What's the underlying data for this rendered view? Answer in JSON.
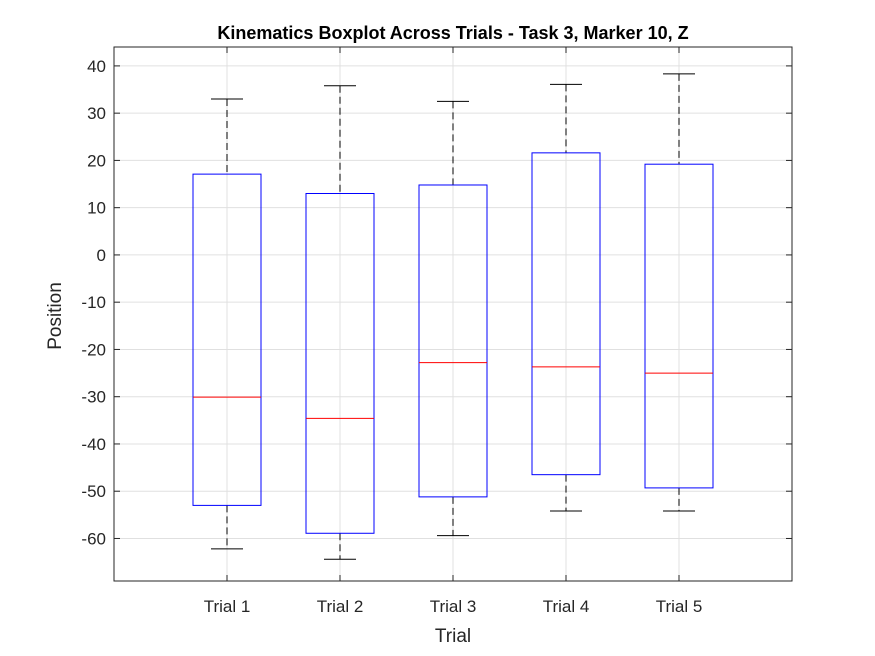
{
  "chart_data": {
    "type": "boxplot",
    "title": "Kinematics Boxplot Across Trials - Task 3, Marker 10, Z",
    "xlabel": "Trial",
    "ylabel": "Position",
    "ylim": [
      -69,
      44
    ],
    "yticks": [
      40,
      30,
      20,
      10,
      0,
      -10,
      -20,
      -30,
      -40,
      -50,
      -60
    ],
    "categories": [
      "Trial 1",
      "Trial 2",
      "Trial 3",
      "Trial 4",
      "Trial 5"
    ],
    "series": [
      {
        "whisker_low": -62.2,
        "q1": -53.0,
        "median": -30.1,
        "q3": 17.1,
        "whisker_high": 33.0
      },
      {
        "whisker_low": -64.4,
        "q1": -58.9,
        "median": -34.6,
        "q3": 13.0,
        "whisker_high": 35.8
      },
      {
        "whisker_low": -59.4,
        "q1": -51.2,
        "median": -22.8,
        "q3": 14.8,
        "whisker_high": 32.5
      },
      {
        "whisker_low": -54.2,
        "q1": -46.5,
        "median": -23.7,
        "q3": 21.6,
        "whisker_high": 36.1
      },
      {
        "whisker_low": -54.2,
        "q1": -49.3,
        "median": -25.0,
        "q3": 19.2,
        "whisker_high": 38.3
      }
    ],
    "grid": true,
    "colors": {
      "box": "#0000ff",
      "median": "#ff0000",
      "whisker": "#000000"
    }
  }
}
